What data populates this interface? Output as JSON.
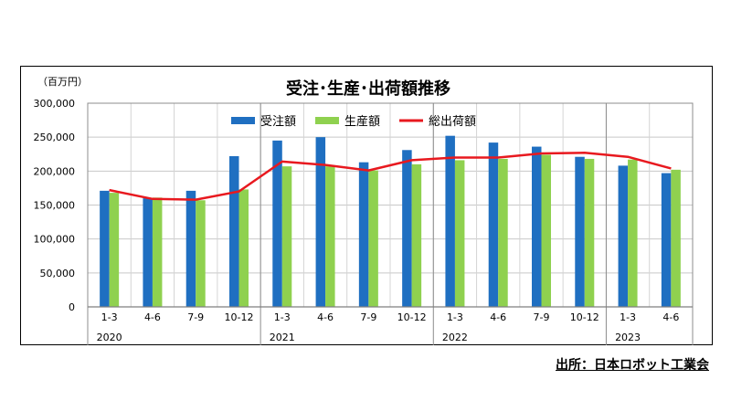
{
  "chart_data": {
    "type": "bar",
    "title": "受注･生産･出荷額推移",
    "unit_label": "（百万円）",
    "ylim": [
      0,
      300000
    ],
    "y_ticks": [
      0,
      50000,
      100000,
      150000,
      200000,
      250000,
      300000
    ],
    "y_tick_labels": [
      "0",
      "50,000",
      "100,000",
      "150,000",
      "200,000",
      "250,000",
      "300,000"
    ],
    "grid": true,
    "legend_position": "top-center",
    "categories": [
      "1-3",
      "4-6",
      "7-9",
      "10-12",
      "1-3",
      "4-6",
      "7-9",
      "10-12",
      "1-3",
      "4-6",
      "7-9",
      "10-12",
      "1-3",
      "4-6"
    ],
    "years": [
      {
        "label": "2020",
        "start": 0,
        "end": 3
      },
      {
        "label": "2021",
        "start": 4,
        "end": 7
      },
      {
        "label": "2022",
        "start": 8,
        "end": 11
      },
      {
        "label": "2023",
        "start": 12,
        "end": 13
      }
    ],
    "series": [
      {
        "name": "受注額",
        "kind": "bar",
        "color": "#1f6fc1",
        "values": [
          171000,
          160000,
          171000,
          222000,
          245000,
          250000,
          213000,
          231000,
          252000,
          242000,
          236000,
          221000,
          208000,
          197000
        ]
      },
      {
        "name": "生産額",
        "kind": "bar",
        "color": "#8fd14f",
        "values": [
          168000,
          161000,
          157000,
          173000,
          207000,
          207000,
          201000,
          210000,
          216000,
          218000,
          224000,
          218000,
          217000,
          202000
        ]
      },
      {
        "name": "総出荷額",
        "kind": "line",
        "color": "#e8191f",
        "values": [
          172000,
          159000,
          158000,
          170000,
          214000,
          209000,
          201000,
          216000,
          220000,
          220000,
          226000,
          227000,
          221000,
          204000
        ]
      }
    ]
  },
  "source_note": "出所：日本ロボット工業会"
}
